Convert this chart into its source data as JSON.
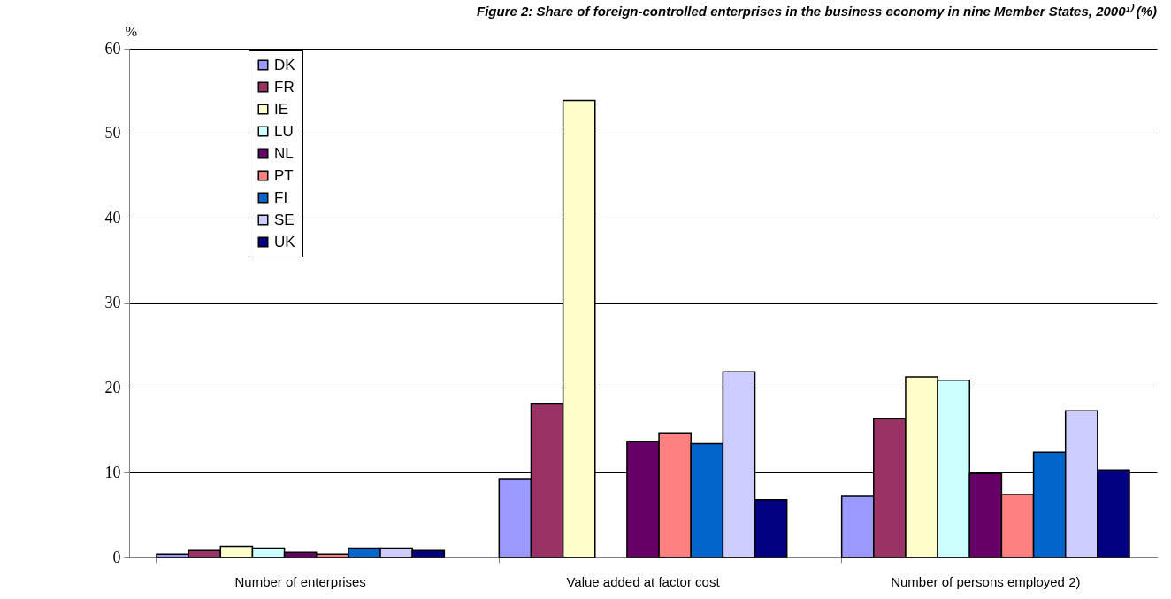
{
  "chart_data": {
    "type": "bar",
    "title": "Figure 2: Share of foreign-controlled enterprises in the business economy in nine Member States, 2000¹⁾ (%)",
    "ylabel": "%",
    "categories": [
      "Number of enterprises",
      "Value added at factor cost",
      "Number of persons employed 2)"
    ],
    "series": [
      {
        "name": "DK",
        "color": "#9999ff",
        "values": [
          0.4,
          9.3,
          7.2
        ]
      },
      {
        "name": "FR",
        "color": "#993366",
        "values": [
          0.8,
          18.1,
          16.4
        ]
      },
      {
        "name": "IE",
        "color": "#ffffcc",
        "values": [
          1.3,
          53.9,
          21.3
        ]
      },
      {
        "name": "LU",
        "color": "#ccffff",
        "values": [
          1.1,
          null,
          20.9
        ]
      },
      {
        "name": "NL",
        "color": "#660066",
        "values": [
          0.6,
          13.7,
          9.9
        ]
      },
      {
        "name": "PT",
        "color": "#ff8080",
        "values": [
          0.4,
          14.7,
          7.4
        ]
      },
      {
        "name": "FI",
        "color": "#0066cc",
        "values": [
          1.1,
          13.4,
          12.4
        ]
      },
      {
        "name": "SE",
        "color": "#ccccff",
        "values": [
          1.1,
          21.9,
          17.3
        ]
      },
      {
        "name": "UK",
        "color": "#000080",
        "values": [
          0.8,
          6.8,
          10.3
        ]
      }
    ],
    "ylim": [
      0,
      60
    ],
    "yticks": [
      0,
      10,
      20,
      30,
      40,
      50,
      60
    ],
    "grid": "y",
    "legend": "top left"
  }
}
